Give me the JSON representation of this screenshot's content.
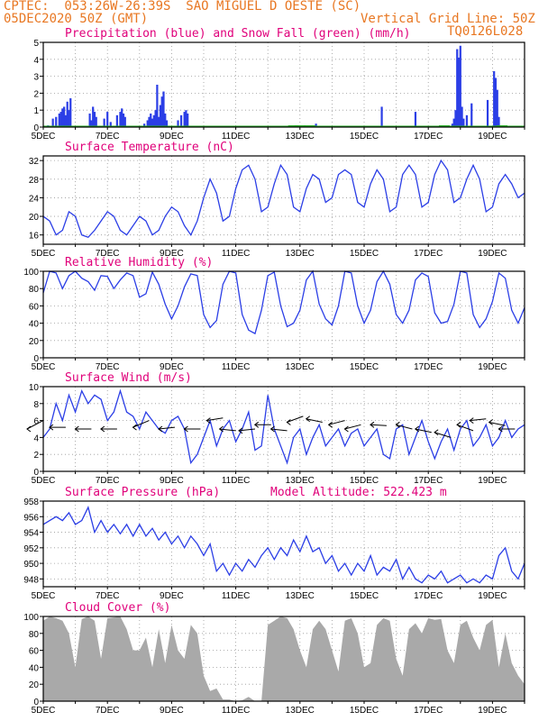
{
  "header": {
    "line1": "CPTEC:  053:26W-26:39S  SAO MIGUEL D OESTE (SC)",
    "line2_left": "05DEC2020 50Z (GMT)",
    "line2_right": "Vertical Grid Line: 50Z",
    "line3_right": "TQ0126L028"
  },
  "x_tick_labels": [
    "5DEC",
    "7DEC",
    "9DEC",
    "11DEC",
    "13DEC",
    "15DEC",
    "17DEC",
    "19DEC"
  ],
  "colors": {
    "header": "#e87722",
    "title": "#e0007a",
    "line": "#2b3ee6",
    "bar": "#2b3ee6",
    "snow": "#22aa22",
    "cloud": "#a9a9a9"
  },
  "chart_data": [
    {
      "type": "bar",
      "title": "Precipitation (blue) and Snow Fall (green) (mm/h)",
      "ylim": [
        0,
        5
      ],
      "yticks": [
        0,
        1,
        2,
        3,
        4,
        5
      ],
      "x_unit": "days since 5DEC",
      "series": [
        {
          "name": "Precipitation",
          "values": [
            [
              0.15,
              0.1
            ],
            [
              0.3,
              0.5
            ],
            [
              0.4,
              0.6
            ],
            [
              0.5,
              0.8
            ],
            [
              0.55,
              0.9
            ],
            [
              0.6,
              1.1
            ],
            [
              0.65,
              1.2
            ],
            [
              0.7,
              0.7
            ],
            [
              0.75,
              1.5
            ],
            [
              0.8,
              1.0
            ],
            [
              0.85,
              1.7
            ],
            [
              1.45,
              0.8
            ],
            [
              1.5,
              0.4
            ],
            [
              1.55,
              1.2
            ],
            [
              1.6,
              0.9
            ],
            [
              1.65,
              0.6
            ],
            [
              1.9,
              0.5
            ],
            [
              2.0,
              0.9
            ],
            [
              2.1,
              0.3
            ],
            [
              2.3,
              0.7
            ],
            [
              2.4,
              0.9
            ],
            [
              2.45,
              1.1
            ],
            [
              2.5,
              0.8
            ],
            [
              2.55,
              0.6
            ],
            [
              3.15,
              0.2
            ],
            [
              3.25,
              0.4
            ],
            [
              3.3,
              0.6
            ],
            [
              3.35,
              0.8
            ],
            [
              3.4,
              0.5
            ],
            [
              3.45,
              0.7
            ],
            [
              3.5,
              1.0
            ],
            [
              3.55,
              2.5
            ],
            [
              3.6,
              0.6
            ],
            [
              3.65,
              1.3
            ],
            [
              3.7,
              1.8
            ],
            [
              3.75,
              2.1
            ],
            [
              3.8,
              0.8
            ],
            [
              3.85,
              0.4
            ],
            [
              4.2,
              0.4
            ],
            [
              4.3,
              0.7
            ],
            [
              4.4,
              0.9
            ],
            [
              4.45,
              1.0
            ],
            [
              4.5,
              0.8
            ],
            [
              8.5,
              0.2
            ],
            [
              10.55,
              1.2
            ],
            [
              11.6,
              0.9
            ],
            [
              12.75,
              0.2
            ],
            [
              12.8,
              0.5
            ],
            [
              12.85,
              1.0
            ],
            [
              12.9,
              4.6
            ],
            [
              12.95,
              4.1
            ],
            [
              13.0,
              4.8
            ],
            [
              13.05,
              1.2
            ],
            [
              13.1,
              0.5
            ],
            [
              13.2,
              0.7
            ],
            [
              13.35,
              1.4
            ],
            [
              13.85,
              1.6
            ],
            [
              14.05,
              3.3
            ],
            [
              14.1,
              2.9
            ],
            [
              14.15,
              2.2
            ],
            [
              14.2,
              0.6
            ]
          ]
        },
        {
          "name": "Snow Fall",
          "values": [
            [
              7.8,
              0.05
            ],
            [
              8.0,
              0.05
            ],
            [
              8.3,
              0.05
            ],
            [
              12.5,
              0.05
            ],
            [
              14.3,
              0.05
            ]
          ]
        }
      ]
    },
    {
      "type": "line",
      "title": "Surface Temperature (nC)",
      "ylim": [
        14,
        33
      ],
      "yticks": [
        16,
        20,
        24,
        28,
        32
      ],
      "x_unit": "days since 5DEC",
      "x": [
        0,
        0.2,
        0.4,
        0.6,
        0.8,
        1.0,
        1.2,
        1.4,
        1.6,
        1.8,
        2.0,
        2.2,
        2.4,
        2.6,
        2.8,
        3.0,
        3.2,
        3.4,
        3.6,
        3.8,
        4.0,
        4.2,
        4.4,
        4.6,
        4.8,
        5.0,
        5.2,
        5.4,
        5.6,
        5.8,
        6.0,
        6.2,
        6.4,
        6.6,
        6.8,
        7.0,
        7.2,
        7.4,
        7.6,
        7.8,
        8.0,
        8.2,
        8.4,
        8.6,
        8.8,
        9.0,
        9.2,
        9.4,
        9.6,
        9.8,
        10.0,
        10.2,
        10.4,
        10.6,
        10.8,
        11.0,
        11.2,
        11.4,
        11.6,
        11.8,
        12.0,
        12.2,
        12.4,
        12.6,
        12.8,
        13.0,
        13.2,
        13.4,
        13.6,
        13.8,
        14.0,
        14.2,
        14.4,
        14.6,
        14.8,
        15.0
      ],
      "values": [
        20,
        19,
        16,
        17,
        21,
        20,
        16,
        15.5,
        17,
        19,
        21,
        20,
        17,
        16,
        18,
        20,
        19,
        16,
        17,
        20,
        22,
        21,
        18,
        16,
        19,
        24,
        28,
        25,
        19,
        20,
        26,
        30,
        31,
        28,
        21,
        22,
        27,
        31,
        29,
        22,
        21,
        26,
        29,
        28,
        23,
        24,
        29,
        30,
        29,
        23,
        22,
        27,
        30,
        28,
        21,
        22,
        29,
        31,
        29,
        22,
        23,
        29,
        32,
        30,
        23,
        24,
        28,
        31,
        28,
        21,
        22,
        27,
        29,
        27,
        24,
        25
      ]
    },
    {
      "type": "line",
      "title": "Relative Humidity (%)",
      "ylim": [
        0,
        100
      ],
      "yticks": [
        0,
        20,
        40,
        60,
        80,
        100
      ],
      "x_unit": "days since 5DEC",
      "x": [
        0,
        0.2,
        0.4,
        0.6,
        0.8,
        1.0,
        1.2,
        1.4,
        1.6,
        1.8,
        2.0,
        2.2,
        2.4,
        2.6,
        2.8,
        3.0,
        3.2,
        3.4,
        3.6,
        3.8,
        4.0,
        4.2,
        4.4,
        4.6,
        4.8,
        5.0,
        5.2,
        5.4,
        5.6,
        5.8,
        6.0,
        6.2,
        6.4,
        6.6,
        6.8,
        7.0,
        7.2,
        7.4,
        7.6,
        7.8,
        8.0,
        8.2,
        8.4,
        8.6,
        8.8,
        9.0,
        9.2,
        9.4,
        9.6,
        9.8,
        10.0,
        10.2,
        10.4,
        10.6,
        10.8,
        11.0,
        11.2,
        11.4,
        11.6,
        11.8,
        12.0,
        12.2,
        12.4,
        12.6,
        12.8,
        13.0,
        13.2,
        13.4,
        13.6,
        13.8,
        14.0,
        14.2,
        14.4,
        14.6,
        14.8,
        15.0
      ],
      "values": [
        75,
        100,
        98,
        80,
        95,
        100,
        92,
        88,
        78,
        95,
        94,
        80,
        90,
        98,
        95,
        70,
        74,
        99,
        85,
        62,
        45,
        60,
        82,
        97,
        95,
        50,
        35,
        43,
        85,
        100,
        98,
        50,
        32,
        28,
        55,
        95,
        99,
        60,
        36,
        40,
        55,
        90,
        100,
        62,
        45,
        38,
        60,
        100,
        98,
        60,
        40,
        55,
        88,
        100,
        85,
        50,
        40,
        55,
        90,
        98,
        94,
        52,
        40,
        42,
        62,
        100,
        98,
        50,
        35,
        45,
        65,
        98,
        92,
        55,
        40,
        58
      ]
    },
    {
      "type": "line",
      "title": "Surface Wind (m/s)",
      "ylim": [
        0,
        10
      ],
      "yticks": [
        0,
        2,
        4,
        6,
        8,
        10
      ],
      "x_unit": "days since 5DEC",
      "x": [
        0,
        0.2,
        0.4,
        0.6,
        0.8,
        1.0,
        1.2,
        1.4,
        1.6,
        1.8,
        2.0,
        2.2,
        2.4,
        2.6,
        2.8,
        3.0,
        3.2,
        3.4,
        3.6,
        3.8,
        4.0,
        4.2,
        4.4,
        4.6,
        4.8,
        5.0,
        5.2,
        5.4,
        5.6,
        5.8,
        6.0,
        6.2,
        6.4,
        6.6,
        6.8,
        7.0,
        7.2,
        7.4,
        7.6,
        7.8,
        8.0,
        8.2,
        8.4,
        8.6,
        8.8,
        9.0,
        9.2,
        9.4,
        9.6,
        9.8,
        10.0,
        10.2,
        10.4,
        10.6,
        10.8,
        11.0,
        11.2,
        11.4,
        11.6,
        11.8,
        12.0,
        12.2,
        12.4,
        12.6,
        12.8,
        13.0,
        13.2,
        13.4,
        13.6,
        13.8,
        14.0,
        14.2,
        14.4,
        14.6,
        14.8,
        15.0
      ],
      "values": [
        4,
        5,
        8,
        6,
        9,
        7,
        9.5,
        8,
        9,
        8.5,
        6,
        7,
        9.5,
        7,
        6.5,
        5,
        7,
        6,
        5,
        4.5,
        6,
        6.5,
        5,
        1,
        2,
        4,
        6,
        3,
        5,
        6,
        3.5,
        5,
        7,
        2.5,
        3,
        9,
        5,
        3,
        1,
        4,
        5,
        2,
        4,
        5.5,
        3,
        4,
        5,
        3,
        4.5,
        5,
        3,
        4,
        5,
        2,
        1.5,
        5,
        5.5,
        2,
        4,
        6,
        3.5,
        1.5,
        3.5,
        5,
        2.5,
        5,
        6,
        3,
        4,
        5.5,
        3,
        4,
        6,
        4,
        5,
        5.5
      ],
      "wind_arrows": [
        [
          0,
          6,
          5
        ],
        [
          0.7,
          5.2,
          5.2
        ],
        [
          1.5,
          5.0,
          5
        ],
        [
          2.3,
          5.0,
          5
        ],
        [
          3.3,
          6.0,
          5.2
        ],
        [
          4.1,
          5.2,
          5
        ],
        [
          4.9,
          5.0,
          5
        ],
        [
          5.6,
          6.3,
          6
        ],
        [
          6.0,
          4.8,
          5
        ],
        [
          6.6,
          5.0,
          4.8
        ],
        [
          7.1,
          5.5,
          5.5
        ],
        [
          7.6,
          4.8,
          5
        ],
        [
          8.1,
          6.5,
          5.8
        ],
        [
          8.7,
          5.8,
          6.2
        ],
        [
          9.4,
          6.0,
          5.5
        ],
        [
          9.9,
          5.5,
          5
        ],
        [
          10.7,
          5.4,
          5.5
        ],
        [
          11.5,
          5.0,
          5.5
        ],
        [
          12.1,
          4.6,
          5
        ],
        [
          12.7,
          4.0,
          4.6
        ],
        [
          13.4,
          4.8,
          5.5
        ],
        [
          13.8,
          6.2,
          6
        ],
        [
          14.4,
          5.4,
          5.8
        ],
        [
          14.7,
          5.0,
          5
        ]
      ]
    },
    {
      "type": "line",
      "title": "Surface Pressure (hPa)",
      "annotation": "Model Altitude: 522.423  m",
      "ylim": [
        947,
        958
      ],
      "yticks": [
        948,
        950,
        952,
        954,
        956,
        958
      ],
      "x_unit": "days since 5DEC",
      "x": [
        0,
        0.2,
        0.4,
        0.6,
        0.8,
        1.0,
        1.2,
        1.4,
        1.6,
        1.8,
        2.0,
        2.2,
        2.4,
        2.6,
        2.8,
        3.0,
        3.2,
        3.4,
        3.6,
        3.8,
        4.0,
        4.2,
        4.4,
        4.6,
        4.8,
        5.0,
        5.2,
        5.4,
        5.6,
        5.8,
        6.0,
        6.2,
        6.4,
        6.6,
        6.8,
        7.0,
        7.2,
        7.4,
        7.6,
        7.8,
        8.0,
        8.2,
        8.4,
        8.6,
        8.8,
        9.0,
        9.2,
        9.4,
        9.6,
        9.8,
        10.0,
        10.2,
        10.4,
        10.6,
        10.8,
        11.0,
        11.2,
        11.4,
        11.6,
        11.8,
        12.0,
        12.2,
        12.4,
        12.6,
        12.8,
        13.0,
        13.2,
        13.4,
        13.6,
        13.8,
        14.0,
        14.2,
        14.4,
        14.6,
        14.8,
        15.0
      ],
      "values": [
        955,
        955.5,
        956,
        955.5,
        956.5,
        955,
        955.5,
        957.2,
        954,
        955.5,
        954,
        955,
        953.8,
        955,
        953.5,
        955,
        953.5,
        954.5,
        953,
        954,
        952.5,
        953.5,
        952,
        953.5,
        952.5,
        951,
        952.5,
        949,
        950,
        948.5,
        950,
        949,
        950.5,
        949.5,
        951,
        952,
        950.5,
        952,
        951,
        953,
        951.5,
        953.5,
        951.5,
        952,
        950,
        951,
        949,
        950,
        948.5,
        950,
        949,
        951,
        948.5,
        949.5,
        949,
        950.5,
        948,
        949.5,
        948,
        947.5,
        948.5,
        948,
        949,
        947.5,
        948,
        948.5,
        947.5,
        948,
        947.5,
        948.5,
        948,
        951,
        952,
        949,
        948,
        950
      ]
    },
    {
      "type": "area",
      "title": "Cloud Cover (%)",
      "ylim": [
        0,
        100
      ],
      "yticks": [
        0,
        20,
        40,
        60,
        80,
        100
      ],
      "x_unit": "days since 5DEC",
      "x": [
        0,
        0.2,
        0.4,
        0.6,
        0.8,
        1.0,
        1.2,
        1.4,
        1.6,
        1.8,
        2.0,
        2.2,
        2.4,
        2.6,
        2.8,
        3.0,
        3.2,
        3.4,
        3.6,
        3.8,
        4.0,
        4.2,
        4.4,
        4.6,
        4.8,
        5.0,
        5.2,
        5.4,
        5.6,
        5.8,
        6.0,
        6.2,
        6.4,
        6.6,
        6.8,
        7.0,
        7.2,
        7.4,
        7.6,
        7.8,
        8.0,
        8.2,
        8.4,
        8.6,
        8.8,
        9.0,
        9.2,
        9.4,
        9.6,
        9.8,
        10.0,
        10.2,
        10.4,
        10.6,
        10.8,
        11.0,
        11.2,
        11.4,
        11.6,
        11.8,
        12.0,
        12.2,
        12.4,
        12.6,
        12.8,
        13.0,
        13.2,
        13.4,
        13.6,
        13.8,
        14.0,
        14.2,
        14.4,
        14.6,
        14.8,
        15.0
      ],
      "values": [
        95,
        100,
        98,
        95,
        80,
        40,
        97,
        100,
        95,
        50,
        98,
        99,
        100,
        85,
        60,
        60,
        75,
        40,
        85,
        45,
        90,
        60,
        50,
        90,
        80,
        30,
        12,
        15,
        2,
        2,
        0,
        1,
        5,
        0,
        0,
        90,
        95,
        100,
        98,
        85,
        60,
        40,
        85,
        95,
        85,
        60,
        35,
        95,
        98,
        80,
        40,
        45,
        90,
        98,
        95,
        50,
        30,
        85,
        92,
        80,
        98,
        96,
        97,
        60,
        45,
        90,
        95,
        75,
        60,
        90,
        96,
        40,
        80,
        45,
        30,
        20
      ]
    }
  ]
}
